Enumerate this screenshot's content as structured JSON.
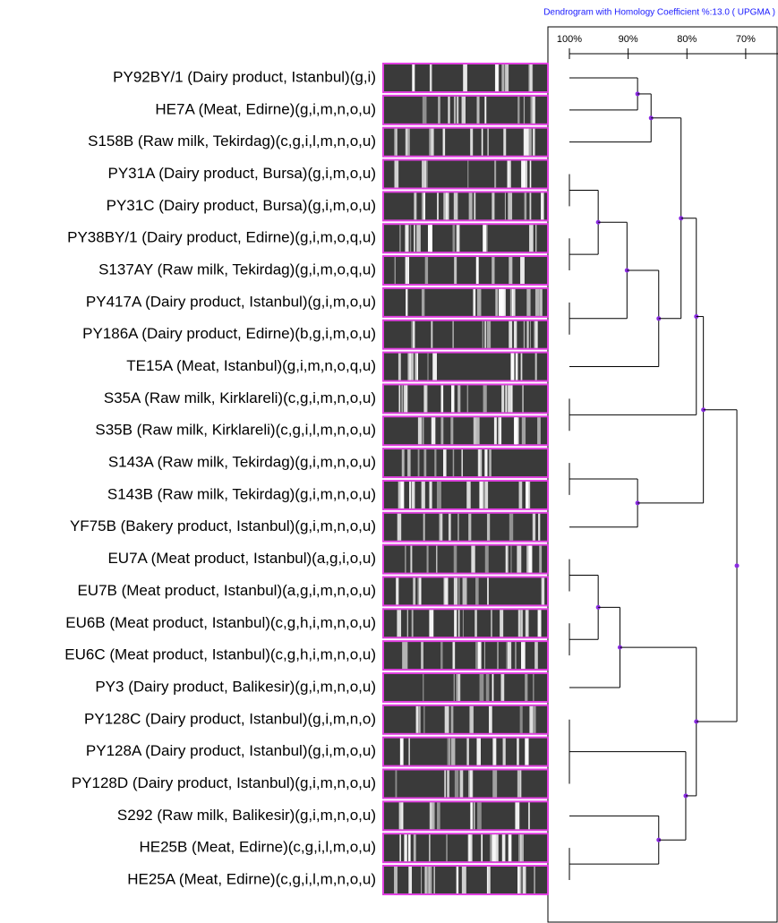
{
  "chart_data": {
    "type": "dendrogram",
    "title": "Dendrogram with Homology Coefficient %:13.0 ( UPGMA )",
    "xlim": [
      100,
      64.5
    ],
    "xticks": [
      {
        "value": 100,
        "label": "100%"
      },
      {
        "value": 90,
        "label": "90%"
      },
      {
        "value": 80,
        "label": "80%"
      },
      {
        "value": 70,
        "label": "70%"
      }
    ],
    "line_color": "#000000",
    "node_color": "#8a2be2",
    "strip_border_color": "#e040e0",
    "tree": {
      "similarity": 71.5,
      "children": [
        {
          "similarity": 77.2,
          "children": [
            {
              "similarity": 78.4,
              "children": [
                {
                  "similarity": 81.0,
                  "children": [
                    {
                      "similarity": 86.1,
                      "children": [
                        {
                          "similarity": 88.4,
                          "children": [
                            {
                              "label": "PY92BY/1 (Dairy product, Istanbul)(g,i)"
                            },
                            {
                              "label": "HE7A (Meat, Edirne)(g,i,m,n,o,u)"
                            }
                          ]
                        },
                        {
                          "label": "S158B (Raw milk, Tekirdag)(c,g,i,l,m,n,o,u)"
                        }
                      ]
                    },
                    {
                      "similarity": 84.8,
                      "children": [
                        {
                          "similarity": 90.2,
                          "children": [
                            {
                              "similarity": 95.1,
                              "children": [
                                {
                                  "similarity": 100,
                                  "children": [
                                    {
                                      "label": "PY31A (Dairy product, Bursa)(g,i,m,o,u)"
                                    },
                                    {
                                      "label": "PY31C (Dairy product, Bursa)(g,i,m,o,u)"
                                    }
                                  ]
                                },
                                {
                                  "similarity": 100,
                                  "children": [
                                    {
                                      "label": "PY38BY/1 (Dairy product, Edirne)(g,i,m,o,q,u)"
                                    },
                                    {
                                      "label": "S137AY (Raw milk, Tekirdag)(g,i,m,o,q,u)"
                                    }
                                  ]
                                }
                              ]
                            },
                            {
                              "similarity": 100,
                              "children": [
                                {
                                  "label": "PY417A (Dairy product, Istanbul)(g,i,m,o,u)"
                                },
                                {
                                  "label": "PY186A (Dairy product, Edirne)(b,g,i,m,o,u)"
                                }
                              ]
                            }
                          ]
                        },
                        {
                          "label": "TE15A (Meat, Istanbul)(g,i,m,n,o,q,u)"
                        }
                      ]
                    }
                  ]
                },
                {
                  "similarity": 100,
                  "children": [
                    {
                      "label": "S35A (Raw milk, Kirklareli)(c,g,i,m,n,o,u)"
                    },
                    {
                      "label": "S35B (Raw milk, Kirklareli)(c,g,i,l,m,n,o,u)"
                    }
                  ]
                }
              ]
            },
            {
              "similarity": 88.4,
              "children": [
                {
                  "similarity": 100,
                  "children": [
                    {
                      "label": "S143A (Raw milk, Tekirdag)(g,i,m,n,o,u)"
                    },
                    {
                      "label": "S143B (Raw milk, Tekirdag)(g,i,m,n,o,u)"
                    }
                  ]
                },
                {
                  "label": "YF75B (Bakery product, Istanbul)(g,i,m,n,o,u)"
                }
              ]
            }
          ]
        },
        {
          "similarity": 78.4,
          "children": [
            {
              "similarity": 91.4,
              "children": [
                {
                  "similarity": 95.1,
                  "children": [
                    {
                      "similarity": 100,
                      "children": [
                        {
                          "label": "EU7A (Meat product, Istanbul)(a,g,i,o,u)"
                        },
                        {
                          "label": "EU7B (Meat product, Istanbul)(a,g,i,m,n,o,u)"
                        }
                      ]
                    },
                    {
                      "similarity": 100,
                      "children": [
                        {
                          "label": "EU6B (Meat product, Istanbul)(c,g,h,i,m,n,o,u)"
                        },
                        {
                          "label": "EU6C (Meat product, Istanbul)(c,g,h,i,m,n,o,u)"
                        }
                      ]
                    }
                  ]
                },
                {
                  "label": "PY3 (Dairy product, Balikesir)(g,i,m,n,o,u)"
                }
              ]
            },
            {
              "similarity": 80.2,
              "children": [
                {
                  "similarity": 100,
                  "children": [
                    {
                      "label": "PY128C (Dairy product, Istanbul)(g,i,m,n,o)"
                    },
                    {
                      "label": "PY128A (Dairy product, Istanbul)(g,i,m,o,u)"
                    },
                    {
                      "label": "PY128D (Dairy product, Istanbul)(g,i,m,n,o,u)"
                    }
                  ]
                },
                {
                  "similarity": 84.8,
                  "children": [
                    {
                      "label": "S292 (Raw milk, Balikesir)(g,i,m,n,o,u)"
                    },
                    {
                      "similarity": 100,
                      "children": [
                        {
                          "label": "HE25B (Meat, Edirne)(c,g,i,l,m,o,u)"
                        },
                        {
                          "label": "HE25A (Meat, Edirne)(c,g,i,l,m,n,o,u)"
                        }
                      ]
                    }
                  ]
                }
              ]
            }
          ]
        }
      ]
    }
  }
}
